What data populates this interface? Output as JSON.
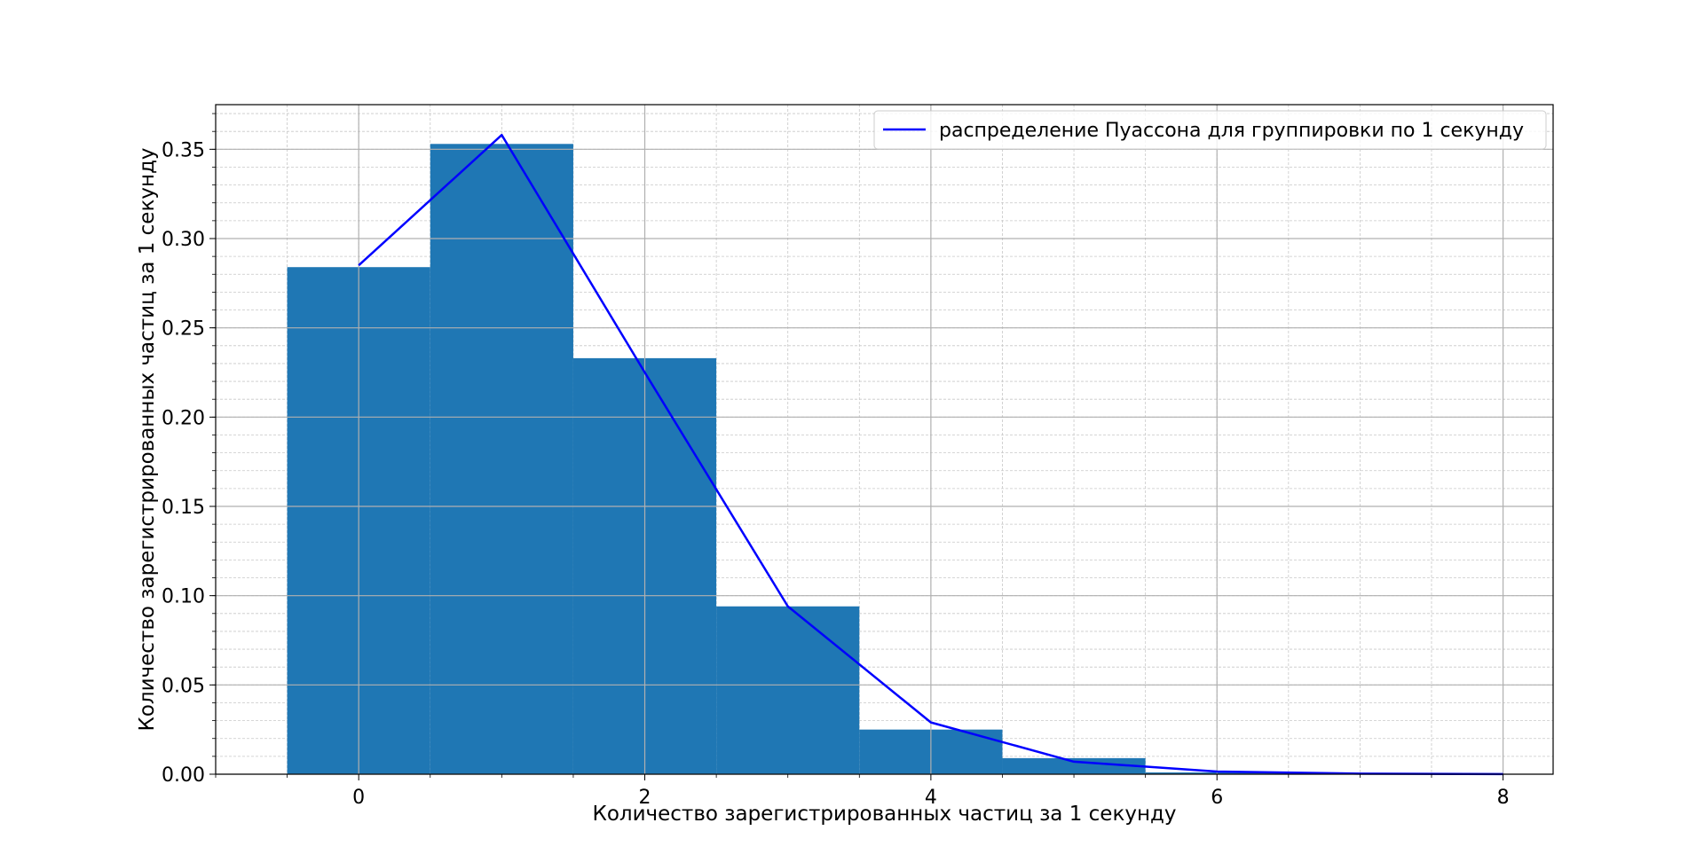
{
  "chart_data": {
    "type": "bar",
    "title": "",
    "xlabel": "Количество зарегистрированных частиц за 1 секунду",
    "ylabel": "Количество зарегистрированных частиц за 1 секунду",
    "xlim": [
      -1.0,
      8.35
    ],
    "ylim": [
      0.0,
      0.375
    ],
    "x_ticks": [
      0,
      2,
      4,
      6,
      8
    ],
    "x_tick_labels": [
      "0",
      "2",
      "4",
      "6",
      "8"
    ],
    "y_ticks": [
      0.0,
      0.05,
      0.1,
      0.15,
      0.2,
      0.25,
      0.3,
      0.35
    ],
    "y_tick_labels": [
      "0.00",
      "0.05",
      "0.10",
      "0.15",
      "0.20",
      "0.25",
      "0.30",
      "0.35"
    ],
    "grid": true,
    "minor_grid": true,
    "histogram": {
      "bin_edges": [
        -0.5,
        0.5,
        1.5,
        2.5,
        3.5,
        4.5,
        5.5,
        6.5
      ],
      "values": [
        0.284,
        0.353,
        0.233,
        0.094,
        0.025,
        0.009,
        0.001
      ],
      "color": "#1f77b4"
    },
    "series": [
      {
        "name": "распределение Пуассона для группировки по 1 секунду",
        "type": "line",
        "color": "#0000ff",
        "x": [
          0,
          1,
          2,
          3,
          4,
          5,
          6,
          7,
          8
        ],
        "y": [
          0.285,
          0.358,
          0.225,
          0.094,
          0.029,
          0.007,
          0.0015,
          0.0003,
          5e-05
        ]
      }
    ],
    "legend_position": "top-right"
  }
}
